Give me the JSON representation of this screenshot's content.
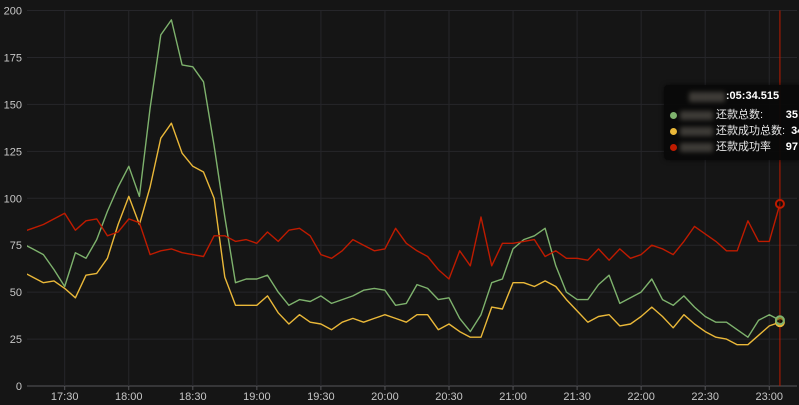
{
  "colors": {
    "background": "#151515",
    "grid": "#26262a",
    "axis_line": "#56565a",
    "axis_text": "#c7c7c7",
    "green": "#7eb26d",
    "yellow": "#eab839",
    "red": "#bf1b00",
    "crosshair": "#bf1b00",
    "tooltip_bg": "#090909"
  },
  "chart_data": {
    "type": "line",
    "title": "",
    "xlabel": "",
    "ylabel": "",
    "ylim": [
      0,
      200
    ],
    "grid": true,
    "legend_position": "none",
    "y_ticks": [
      0,
      25,
      50,
      75,
      100,
      125,
      150,
      175,
      200
    ],
    "x_ticks": [
      "17:30",
      "18:00",
      "18:30",
      "19:00",
      "19:30",
      "20:00",
      "20:30",
      "21:00",
      "21:30",
      "22:00",
      "22:30",
      "23:00"
    ],
    "x": [
      "17:10",
      "17:15",
      "17:20",
      "17:25",
      "17:30",
      "17:35",
      "17:40",
      "17:45",
      "17:50",
      "17:55",
      "18:00",
      "18:05",
      "18:10",
      "18:15",
      "18:20",
      "18:25",
      "18:30",
      "18:35",
      "18:40",
      "18:45",
      "18:50",
      "18:55",
      "19:00",
      "19:05",
      "19:10",
      "19:15",
      "19:20",
      "19:25",
      "19:30",
      "19:35",
      "19:40",
      "19:45",
      "19:50",
      "19:55",
      "20:00",
      "20:05",
      "20:10",
      "20:15",
      "20:20",
      "20:25",
      "20:30",
      "20:35",
      "20:40",
      "20:45",
      "20:50",
      "20:55",
      "21:00",
      "21:05",
      "21:10",
      "21:15",
      "21:20",
      "21:25",
      "21:30",
      "21:35",
      "21:40",
      "21:45",
      "21:50",
      "21:55",
      "22:00",
      "22:05",
      "22:10",
      "22:15",
      "22:20",
      "22:25",
      "22:30",
      "22:35",
      "22:40",
      "22:45",
      "22:50",
      "22:55",
      "23:00",
      "23:05"
    ],
    "series": [
      {
        "name": "还款总数",
        "color": "#7eb26d",
        "values": [
          76,
          73,
          70,
          62,
          53,
          71,
          68,
          78,
          93,
          106,
          117,
          101,
          148,
          187,
          195,
          171,
          170,
          162,
          128,
          90,
          55,
          57,
          57,
          59,
          50,
          43,
          46,
          45,
          48,
          44,
          46,
          48,
          51,
          52,
          51,
          43,
          44,
          54,
          52,
          46,
          47,
          36,
          29,
          38,
          55,
          57,
          73,
          78,
          80,
          84,
          64,
          50,
          46,
          46,
          54,
          59,
          44,
          47,
          50,
          57,
          46,
          43,
          48,
          42,
          37,
          34,
          34,
          30,
          26,
          35,
          38,
          35
        ]
      },
      {
        "name": "还款成功总数",
        "color": "#eab839",
        "values": [
          61,
          58,
          55,
          56,
          52,
          47,
          59,
          60,
          68,
          86,
          101,
          86,
          106,
          132,
          140,
          124,
          117,
          114,
          100,
          58,
          43,
          43,
          43,
          48,
          39,
          33,
          38,
          34,
          33,
          30,
          34,
          36,
          34,
          36,
          38,
          36,
          34,
          38,
          38,
          30,
          33,
          29,
          26,
          26,
          42,
          41,
          55,
          55,
          53,
          56,
          53,
          46,
          40,
          34,
          37,
          38,
          32,
          33,
          37,
          42,
          37,
          31,
          38,
          33,
          29,
          26,
          25,
          22,
          22,
          27,
          32,
          34
        ]
      },
      {
        "name": "还款成功率",
        "color": "#bf1b00",
        "values": [
          82,
          84,
          86,
          89,
          92,
          83,
          88,
          89,
          80,
          82,
          89,
          87,
          70,
          72,
          73,
          71,
          70,
          69,
          80,
          80,
          77,
          78,
          76,
          82,
          77,
          83,
          84,
          80,
          70,
          68,
          72,
          78,
          75,
          72,
          73,
          84,
          76,
          72,
          69,
          62,
          57,
          72,
          64,
          90,
          64,
          76,
          76,
          77,
          78,
          69,
          72,
          68,
          68,
          67,
          73,
          67,
          73,
          68,
          70,
          75,
          73,
          70,
          77,
          85,
          81,
          77,
          72,
          72,
          88,
          77,
          77,
          97
        ]
      }
    ]
  },
  "crosshair": {
    "time": "23:05",
    "color": "#bf1b00",
    "markers": [
      {
        "series": "还款成功率",
        "value": 97,
        "color": "#bf1b00"
      },
      {
        "series": "还款成功总数",
        "value": 34,
        "color": "#eab839"
      },
      {
        "series": "还款总数",
        "value": 35,
        "color": "#7eb26d"
      }
    ]
  },
  "tooltip": {
    "redacted_date": true,
    "time_visible": ":05:34.515",
    "rows": [
      {
        "label": "还款总数:",
        "value": "35",
        "color": "#7eb26d",
        "redacted_prefix": true
      },
      {
        "label": "还款成功总数:",
        "value": "34",
        "color": "#eab839",
        "redacted_prefix": true
      },
      {
        "label": "还款成功率",
        "value": "97",
        "color": "#bf1b00",
        "redacted_prefix": true
      }
    ]
  }
}
